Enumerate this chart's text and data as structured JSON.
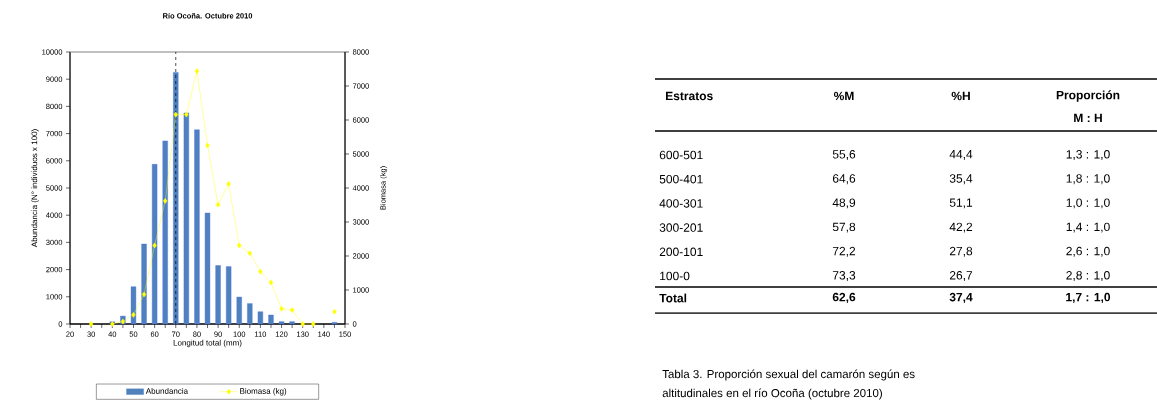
{
  "chart_data": [
    {
      "type": "bar",
      "title": "Río Ocoña.  Octubre 2010",
      "xlabel": "Longitud total (mm)",
      "ylabel": "Abundancia (N° individuos x 100)",
      "y2label": "Biomasa (kg)",
      "x": [
        30,
        35,
        40,
        45,
        50,
        55,
        60,
        65,
        70,
        75,
        80,
        85,
        90,
        95,
        100,
        105,
        110,
        115,
        120,
        125,
        130,
        135,
        140,
        145
      ],
      "series": [
        {
          "name": "Abundancia",
          "type": "bar",
          "color": "#4f81bd",
          "values": [
            null,
            null,
            80,
            290,
            1370,
            2940,
            5870,
            6730,
            9250,
            7760,
            7140,
            4080,
            2150,
            2110,
            990,
            750,
            450,
            330,
            85,
            85,
            null,
            null,
            null,
            60
          ]
        },
        {
          "name": "Biomasa (kg)",
          "type": "line",
          "axis": "y2",
          "color": "#ffff00",
          "values": [
            0,
            null,
            0,
            70,
            270,
            870,
            2310,
            3620,
            6160,
            6160,
            7440,
            5250,
            3510,
            4120,
            2310,
            2080,
            1540,
            1220,
            450,
            410,
            0,
            0,
            null,
            360
          ]
        }
      ],
      "xlim": [
        20,
        150
      ],
      "xticks": [
        20,
        30,
        40,
        50,
        60,
        70,
        80,
        90,
        100,
        110,
        120,
        130,
        140,
        150
      ],
      "ylim": [
        0,
        10000
      ],
      "yticks": [
        0,
        1000,
        2000,
        3000,
        4000,
        5000,
        6000,
        7000,
        8000,
        9000,
        10000
      ],
      "y2lim": [
        0,
        8000
      ],
      "y2ticks": [
        0,
        1000,
        2000,
        3000,
        4000,
        5000,
        6000,
        7000,
        8000
      ],
      "ref_lines": [
        {
          "axis": "x",
          "value": 70,
          "color": "#000000",
          "line_style": "dashed"
        }
      ],
      "grid": false,
      "legend": "bottom",
      "marker": "diamond",
      "line_style": "solid"
    },
    {
      "type": "other",
      "annotations": [
        "Estratos",
        "%M",
        "%H",
        "Proporción",
        "M  :  H",
        "600-501",
        "55,6",
        "44,4",
        "1,3 : 1,0",
        "500-401",
        "64,6",
        "35,4",
        "1,8 : 1,0",
        "400-301",
        "48,9",
        "51,1",
        "1,0 : 1,0",
        "300-201",
        "57,8",
        "42,2",
        "1,4 : 1,0",
        "200-101",
        "72,2",
        "27,8",
        "2,6 : 1,0",
        "100-0",
        "73,3",
        "26,7",
        "2,8 : 1,0",
        "Total",
        "62,6",
        "37,4",
        "1,7 : 1,0",
        "Tabla 3. Proporción sexual del camarón según es",
        "altitudinales en el río Ocoña (octubre 2010)"
      ]
    }
  ]
}
